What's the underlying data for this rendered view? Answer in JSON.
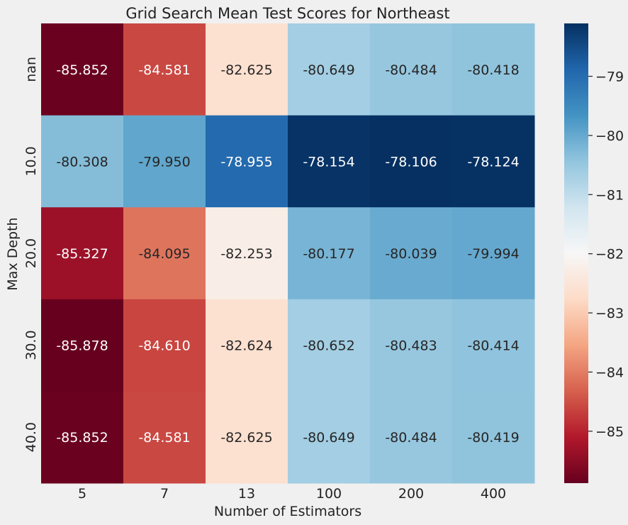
{
  "chart_data": {
    "type": "heatmap",
    "title": "Grid Search Mean Test Scores for Northeast",
    "xlabel": "Number of Estimators",
    "ylabel": "Max Depth",
    "x_categories": [
      "5",
      "7",
      "13",
      "100",
      "200",
      "400"
    ],
    "y_categories": [
      "nan",
      "10.0",
      "20.0",
      "30.0",
      "40.0"
    ],
    "values": [
      [
        -85.852,
        -84.581,
        -82.625,
        -80.649,
        -80.484,
        -80.418
      ],
      [
        -80.308,
        -79.95,
        -78.955,
        -78.154,
        -78.106,
        -78.124
      ],
      [
        -85.327,
        -84.095,
        -82.253,
        -80.177,
        -80.039,
        -79.994
      ],
      [
        -85.878,
        -84.61,
        -82.624,
        -80.652,
        -80.483,
        -80.414
      ],
      [
        -85.852,
        -84.581,
        -82.625,
        -80.649,
        -80.484,
        -80.419
      ]
    ],
    "value_labels": [
      [
        "-85.852",
        "-84.581",
        "-82.625",
        "-80.649",
        "-80.484",
        "-80.418"
      ],
      [
        "-80.308",
        "-79.950",
        "-78.955",
        "-78.154",
        "-78.106",
        "-78.124"
      ],
      [
        "-85.327",
        "-84.095",
        "-82.253",
        "-80.177",
        "-80.039",
        "-79.994"
      ],
      [
        "-85.878",
        "-84.610",
        "-82.624",
        "-80.652",
        "-80.483",
        "-80.414"
      ],
      [
        "-85.852",
        "-84.581",
        "-82.625",
        "-80.649",
        "-80.484",
        "-80.419"
      ]
    ],
    "colorbar": {
      "colormap": "RdBu",
      "range": [
        -85.878,
        -78.106
      ],
      "ticks": [
        -85,
        -84,
        -83,
        -82,
        -81,
        -80,
        -79
      ],
      "tick_labels": [
        "−85",
        "−84",
        "−83",
        "−82",
        "−81",
        "−80",
        "−79"
      ]
    },
    "grid": false,
    "colors": {
      "background": "#f0f0f0",
      "low": "#67001f",
      "mid": "#f7f7f7",
      "high": "#053061"
    }
  }
}
